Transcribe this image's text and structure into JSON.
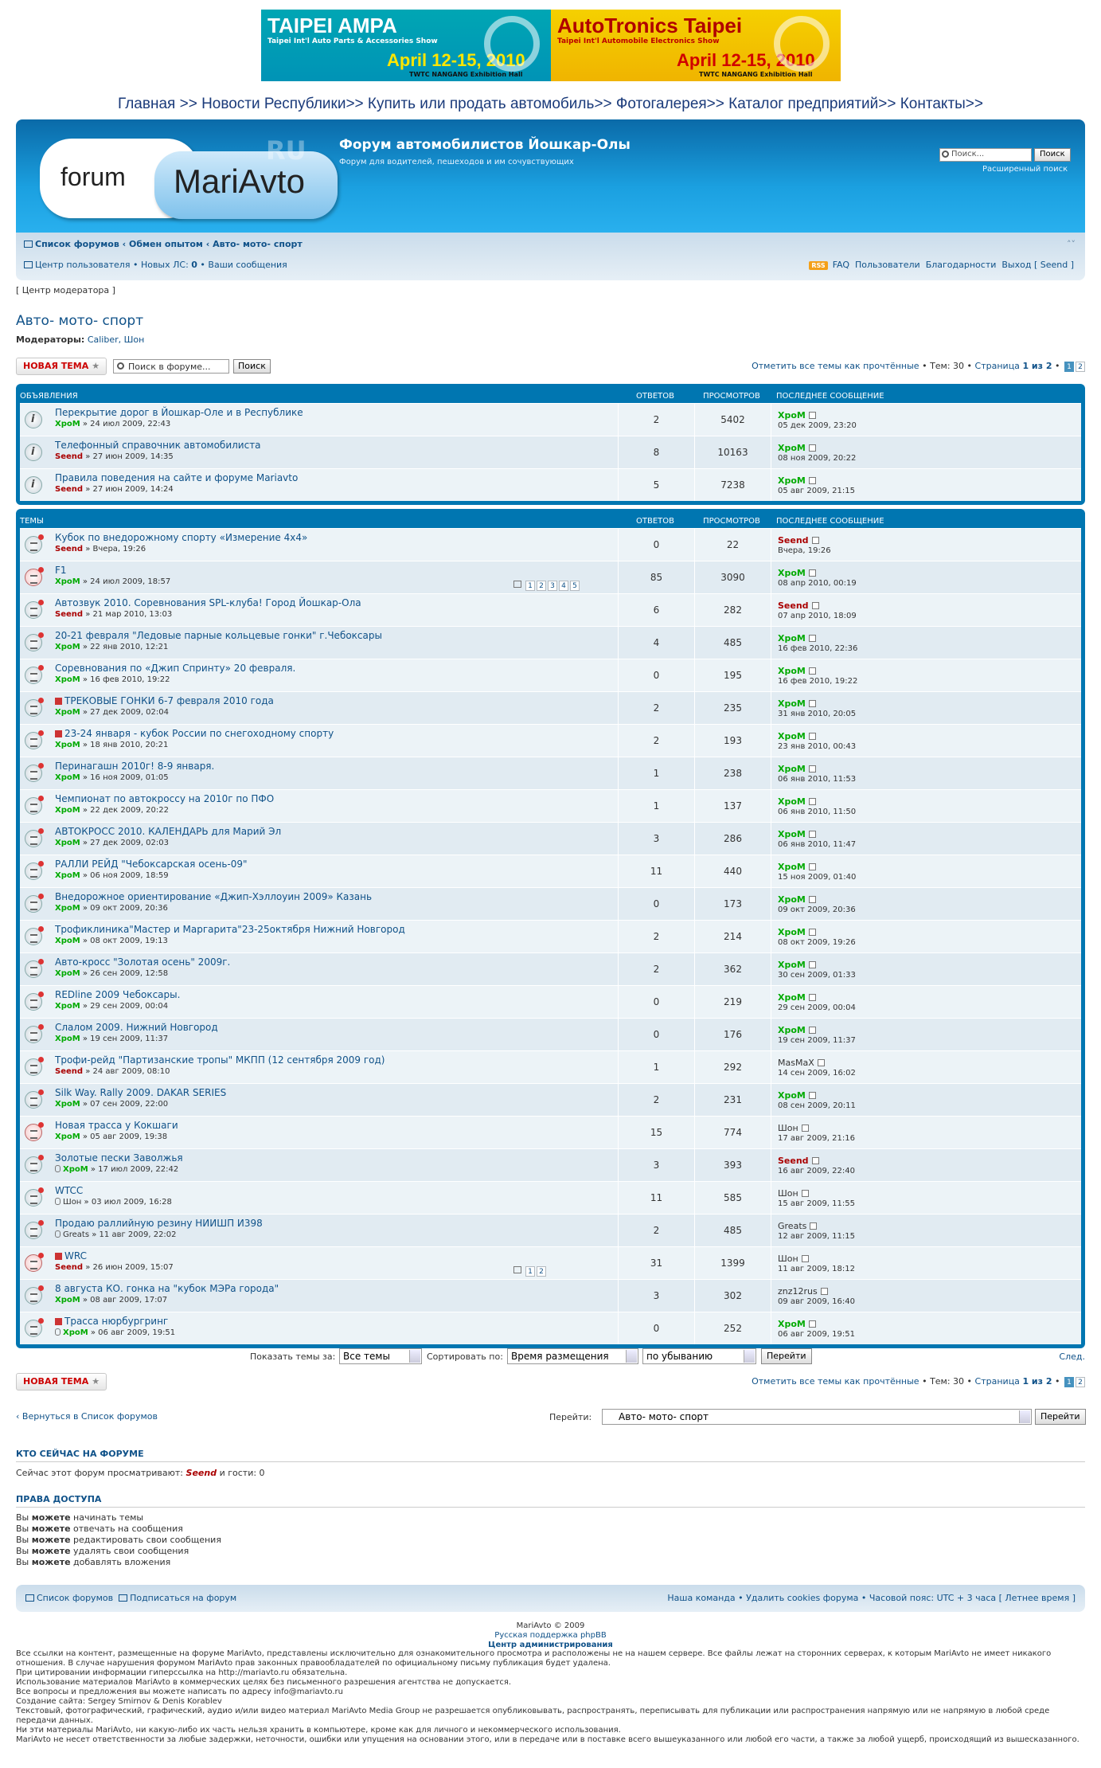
{
  "banners": {
    "left": {
      "title": "TAIPEI AMPA",
      "sub": "Taipei Int'l Auto Parts & Accessories Show",
      "date": "April 12-15, 2010",
      "hall": "TWTC NANGANG Exhibition Hall"
    },
    "right": {
      "title": "AutoTronics Taipei",
      "sub": "Taipei Int'l Automobile Electronics Show",
      "date": "April 12-15, 2010",
      "hall": "TWTC NANGANG Exhibition Hall"
    }
  },
  "topnav": "Главная >> Новости Республики>> Купить или продать автомобиль>> Фотогалерея>> Каталог предприятий>> Контакты>>",
  "header": {
    "logo_left": "forum",
    "logo_right": "MariAvto",
    "logo_ru": "RU",
    "title": "Форум автомобилистов Йошкар-Олы",
    "desc": "Форум для водителей, пешеходов и им сочувствующих",
    "search_placeholder": "Поиск...",
    "search_btn": "Поиск",
    "advanced": "Расширенный поиск"
  },
  "nav": {
    "crumb1": "Список форумов",
    "crumb2": "Обмен опытом",
    "crumb3": "Авто- мото- спорт",
    "ucp": "Центр пользователя",
    "new_pm": "Новых ЛС:",
    "new_pm_count": "0",
    "your_posts": "Ваши сообщения",
    "rss": "RSS",
    "faq": "FAQ",
    "users": "Пользователи",
    "thanks": "Благодарности",
    "logout": "Выход [ Seend ]",
    "collapse": "˄˅"
  },
  "modctl": "[ Центр модератора ]",
  "forum": {
    "title": "Авто- мото- спорт",
    "mods_label": "Модераторы:",
    "mods": "Caliber, Шон"
  },
  "actions": {
    "new_topic": "НОВАЯ ТЕМА",
    "search_ph": "Поиск в форуме...",
    "search_btn": "Поиск",
    "mark_read": "Отметить все темы как прочтённые",
    "topics": "Тем: 30",
    "page": "Страница",
    "page_of": "1 из 2",
    "p1": "1",
    "p2": "2"
  },
  "cols": {
    "announcements": "ОБЪЯВЛЕНИЯ",
    "topics": "ТЕМЫ",
    "replies": "ОТВЕТОВ",
    "views": "ПРОСМОТРОВ",
    "last": "ПОСЛЕДНЕЕ СООБЩЕНИЕ"
  },
  "announcements": [
    {
      "title": "Перекрытие дорог в Йошкар-Оле и в Республике",
      "author": "ХроМ",
      "date": "24 июл 2009, 22:43",
      "replies": "2",
      "views": "5402",
      "last_user": "ХроМ",
      "last_date": "05 дек 2009, 23:20"
    },
    {
      "title": "Телефонный справочник автомобилиста",
      "author": "Seend",
      "date": "27 июн 2009, 14:35",
      "replies": "8",
      "views": "10163",
      "last_user": "ХроМ",
      "last_date": "08 ноя 2009, 20:22"
    },
    {
      "title": "Правила поведения на сайте и форуме Mariavto",
      "author": "Seend",
      "date": "27 июн 2009, 14:24",
      "replies": "5",
      "views": "7238",
      "last_user": "ХроМ",
      "last_date": "05 авг 2009, 21:15"
    }
  ],
  "topics": [
    {
      "title": "Кубок по внедорожному спорту «Измерение 4х4»",
      "author": "Seend",
      "date": "Вчера, 19:26",
      "replies": "0",
      "views": "22",
      "last_user": "Seend",
      "last_date": "Вчера, 19:26"
    },
    {
      "title": "F1",
      "author": "ХроМ",
      "date": "24 июл 2009, 18:57",
      "replies": "85",
      "views": "3090",
      "last_user": "ХроМ",
      "last_date": "08 апр 2010, 00:19",
      "pages": [
        "1",
        "2",
        "3",
        "4",
        "5"
      ]
    },
    {
      "title": "Автозвук 2010. Соревнования SPL-клуба! Город Йошкар-Ола",
      "author": "Seend",
      "date": "21 мар 2010, 13:03",
      "replies": "6",
      "views": "282",
      "last_user": "Seend",
      "last_date": "07 апр 2010, 18:09"
    },
    {
      "title": "20-21 февраля \"Ледовые парные кольцевые гонки\" г.Чебоксары",
      "author": "ХроМ",
      "date": "22 янв 2010, 12:21",
      "replies": "4",
      "views": "485",
      "last_user": "ХроМ",
      "last_date": "16 фев 2010, 22:36"
    },
    {
      "title": "Соревнования по «Джип Спринту» 20 февраля.",
      "author": "ХроМ",
      "date": "16 фев 2010, 19:22",
      "replies": "0",
      "views": "195",
      "last_user": "ХроМ",
      "last_date": "16 фев 2010, 19:22"
    },
    {
      "title": "ТРЕКОВЫЕ ГОНКИ 6-7 февраля 2010 года",
      "author": "ХроМ",
      "date": "27 дек 2009, 02:04",
      "replies": "2",
      "views": "235",
      "last_user": "ХроМ",
      "last_date": "31 янв 2010, 20:05",
      "poll": true
    },
    {
      "title": "23-24 января - кубок России по снегоходному спорту",
      "author": "ХроМ",
      "date": "18 янв 2010, 20:21",
      "replies": "2",
      "views": "193",
      "last_user": "ХроМ",
      "last_date": "23 янв 2010, 00:43",
      "poll": true
    },
    {
      "title": "Перинагашн 2010г! 8-9 января.",
      "author": "ХроМ",
      "date": "16 ноя 2009, 01:05",
      "replies": "1",
      "views": "238",
      "last_user": "ХроМ",
      "last_date": "06 янв 2010, 11:53"
    },
    {
      "title": "Чемпионат по автокроссу на 2010г по ПФО",
      "author": "ХроМ",
      "date": "22 дек 2009, 20:22",
      "replies": "1",
      "views": "137",
      "last_user": "ХроМ",
      "last_date": "06 янв 2010, 11:50"
    },
    {
      "title": "АВТОКРОСС 2010. КАЛЕНДАРЬ для Марий Эл",
      "author": "ХроМ",
      "date": "27 дек 2009, 02:03",
      "replies": "3",
      "views": "286",
      "last_user": "ХроМ",
      "last_date": "06 янв 2010, 11:47"
    },
    {
      "title": "РАЛЛИ РЕЙД \"Чебоксарская осень-09\"",
      "author": "ХроМ",
      "date": "06 ноя 2009, 18:59",
      "replies": "11",
      "views": "440",
      "last_user": "ХроМ",
      "last_date": "15 ноя 2009, 01:40"
    },
    {
      "title": "Внедорожное ориентирование «Джип-Хэллоуин 2009» Казань",
      "author": "ХроМ",
      "date": "09 окт 2009, 20:36",
      "replies": "0",
      "views": "173",
      "last_user": "ХроМ",
      "last_date": "09 окт 2009, 20:36"
    },
    {
      "title": "Трофиклиника\"Мастер и Маргарита\"23-25октября Нижний Новгород",
      "author": "ХроМ",
      "date": "08 окт 2009, 19:13",
      "replies": "2",
      "views": "214",
      "last_user": "ХроМ",
      "last_date": "08 окт 2009, 19:26"
    },
    {
      "title": "Авто-кросс \"Золотая осень\" 2009г.",
      "author": "ХроМ",
      "date": "26 сен 2009, 12:58",
      "replies": "2",
      "views": "362",
      "last_user": "ХроМ",
      "last_date": "30 сен 2009, 01:33"
    },
    {
      "title": "REDline 2009 Чебоксары.",
      "author": "ХроМ",
      "date": "29 сен 2009, 00:04",
      "replies": "0",
      "views": "219",
      "last_user": "ХроМ",
      "last_date": "29 сен 2009, 00:04"
    },
    {
      "title": "Слалом 2009. Нижний Новгород",
      "author": "ХроМ",
      "date": "19 сен 2009, 11:37",
      "replies": "0",
      "views": "176",
      "last_user": "ХроМ",
      "last_date": "19 сен 2009, 11:37"
    },
    {
      "title": "Трофи-рейд \"Партизанские тропы\" МКПП (12 сентября 2009 год)",
      "author": "Seend",
      "date": "24 авг 2009, 08:10",
      "replies": "1",
      "views": "292",
      "last_user": "MasMaX",
      "last_date": "14 сен 2009, 16:02"
    },
    {
      "title": "Silk Way. Rally 2009. DAKAR SERIES",
      "author": "ХроМ",
      "date": "07 сен 2009, 22:00",
      "replies": "2",
      "views": "231",
      "last_user": "ХроМ",
      "last_date": "08 сен 2009, 20:11"
    },
    {
      "title": "Новая трасса у Кокшаги",
      "author": "ХроМ",
      "date": "05 авг 2009, 19:38",
      "replies": "15",
      "views": "774",
      "last_user": "Шон",
      "last_date": "17 авг 2009, 21:16"
    },
    {
      "title": "Золотые пески Заволжья",
      "author": "ХроМ",
      "date": "17 июл 2009, 22:42",
      "replies": "3",
      "views": "393",
      "last_user": "Seend",
      "last_date": "16 авг 2009, 22:40",
      "clip": true
    },
    {
      "title": "WTCC",
      "author": "Шон",
      "date": "03 июл 2009, 16:28",
      "replies": "11",
      "views": "585",
      "last_user": "Шон",
      "last_date": "15 авг 2009, 11:55",
      "clip": true
    },
    {
      "title": "Продаю раллийную резину НИИШП И398",
      "author": "Greats",
      "date": "11 авг 2009, 22:02",
      "replies": "2",
      "views": "485",
      "last_user": "Greats",
      "last_date": "12 авг 2009, 11:15",
      "clip": true
    },
    {
      "title": "WRC",
      "author": "Seend",
      "date": "26 июн 2009, 15:07",
      "replies": "31",
      "views": "1399",
      "last_user": "Шон",
      "last_date": "11 авг 2009, 18:12",
      "poll": true,
      "pages": [
        "1",
        "2"
      ]
    },
    {
      "title": "8 августа КО. гонка на \"кубок МЭРа города\"",
      "author": "ХроМ",
      "date": "08 авг 2009, 17:07",
      "replies": "3",
      "views": "302",
      "last_user": "znz12rus",
      "last_date": "09 авг 2009, 16:40"
    },
    {
      "title": "Трасса нюрбургринг",
      "author": "ХроМ",
      "date": "06 авг 2009, 19:51",
      "replies": "0",
      "views": "252",
      "last_user": "ХроМ",
      "last_date": "06 авг 2009, 19:51",
      "poll": true,
      "clip": true
    }
  ],
  "filters": {
    "show_label": "Показать темы за:",
    "show_val": "Все темы",
    "sort_label": "Сортировать по:",
    "sort_val": "Время размещения",
    "order_val": "по убыванию",
    "go": "Перейти",
    "next": "След."
  },
  "back": "Вернуться в Список форумов",
  "jump": {
    "label": "Перейти:",
    "val": "Авто- мото- спорт",
    "btn": "Перейти"
  },
  "online": {
    "header": "КТО СЕЙЧАС НА ФОРУМЕ",
    "pre": "Сейчас этот форум просматривают:",
    "user": "Seend",
    "post": "и гости: 0"
  },
  "perms": {
    "header": "ПРАВА ДОСТУПА",
    "lines": [
      [
        "Вы",
        "можете",
        "начинать темы"
      ],
      [
        "Вы",
        "можете",
        "отвечать на сообщения"
      ],
      [
        "Вы",
        "можете",
        "редактировать свои сообщения"
      ],
      [
        "Вы",
        "можете",
        "удалять свои сообщения"
      ],
      [
        "Вы",
        "можете",
        "добавлять вложения"
      ]
    ]
  },
  "footbar": {
    "index": "Список форумов",
    "subscribe": "Подписаться на форум",
    "team": "Наша команда",
    "cookies": "Удалить cookies форума",
    "tz": "Часовой пояс: UTC + 3 часа [ Летнее время ]"
  },
  "copyright": {
    "l1": "MariAvto © 2009",
    "l2": "Русская поддержка phpBB",
    "l3": "Центр администрирования"
  },
  "disclaimer": [
    "Все ссылки на контент, размещенные на форуме MariAvto, представлены исключительно для ознакомительного просмотра и расположены не на нашем сервере. Все файлы лежат на сторонних серверах, к которым MariAvto не имеет никакого отношения. В случае нарушения форумом MariAvto прав законных правообладателей по официальному письму публикация будет удалена.",
    "При цитировании информации гиперссылка на http://mariavto.ru обязательна.",
    "Использование материалов MariAvto в коммерческих целях без письменного разрешения агентства не допускается.",
    "Все вопросы и предложения вы можете написать по адресу info@mariavto.ru",
    "Создание сайта: Sergey Smirnov & Denis Korablev",
    "Текстовый, фотографический, графический, аудио и/или видео материал MariAvto Media Group не разрешается опубликовывать, распространять, переписывать для публикации или распространения напрямую или не напрямую в любой среде передачи данных.",
    "Ни эти материалы MariAvto, ни какую-либо их часть нельзя хранить в компьютере, кроме как для личного и некоммерческого использования.",
    "MariAvto не несет ответственности за любые задержки, неточности, ошибки или упущения на основании этого, или в передаче или в поставке всего вышеуказанного или любой его части, а также за любой ущерб, происходящий из вышесказанного."
  ]
}
